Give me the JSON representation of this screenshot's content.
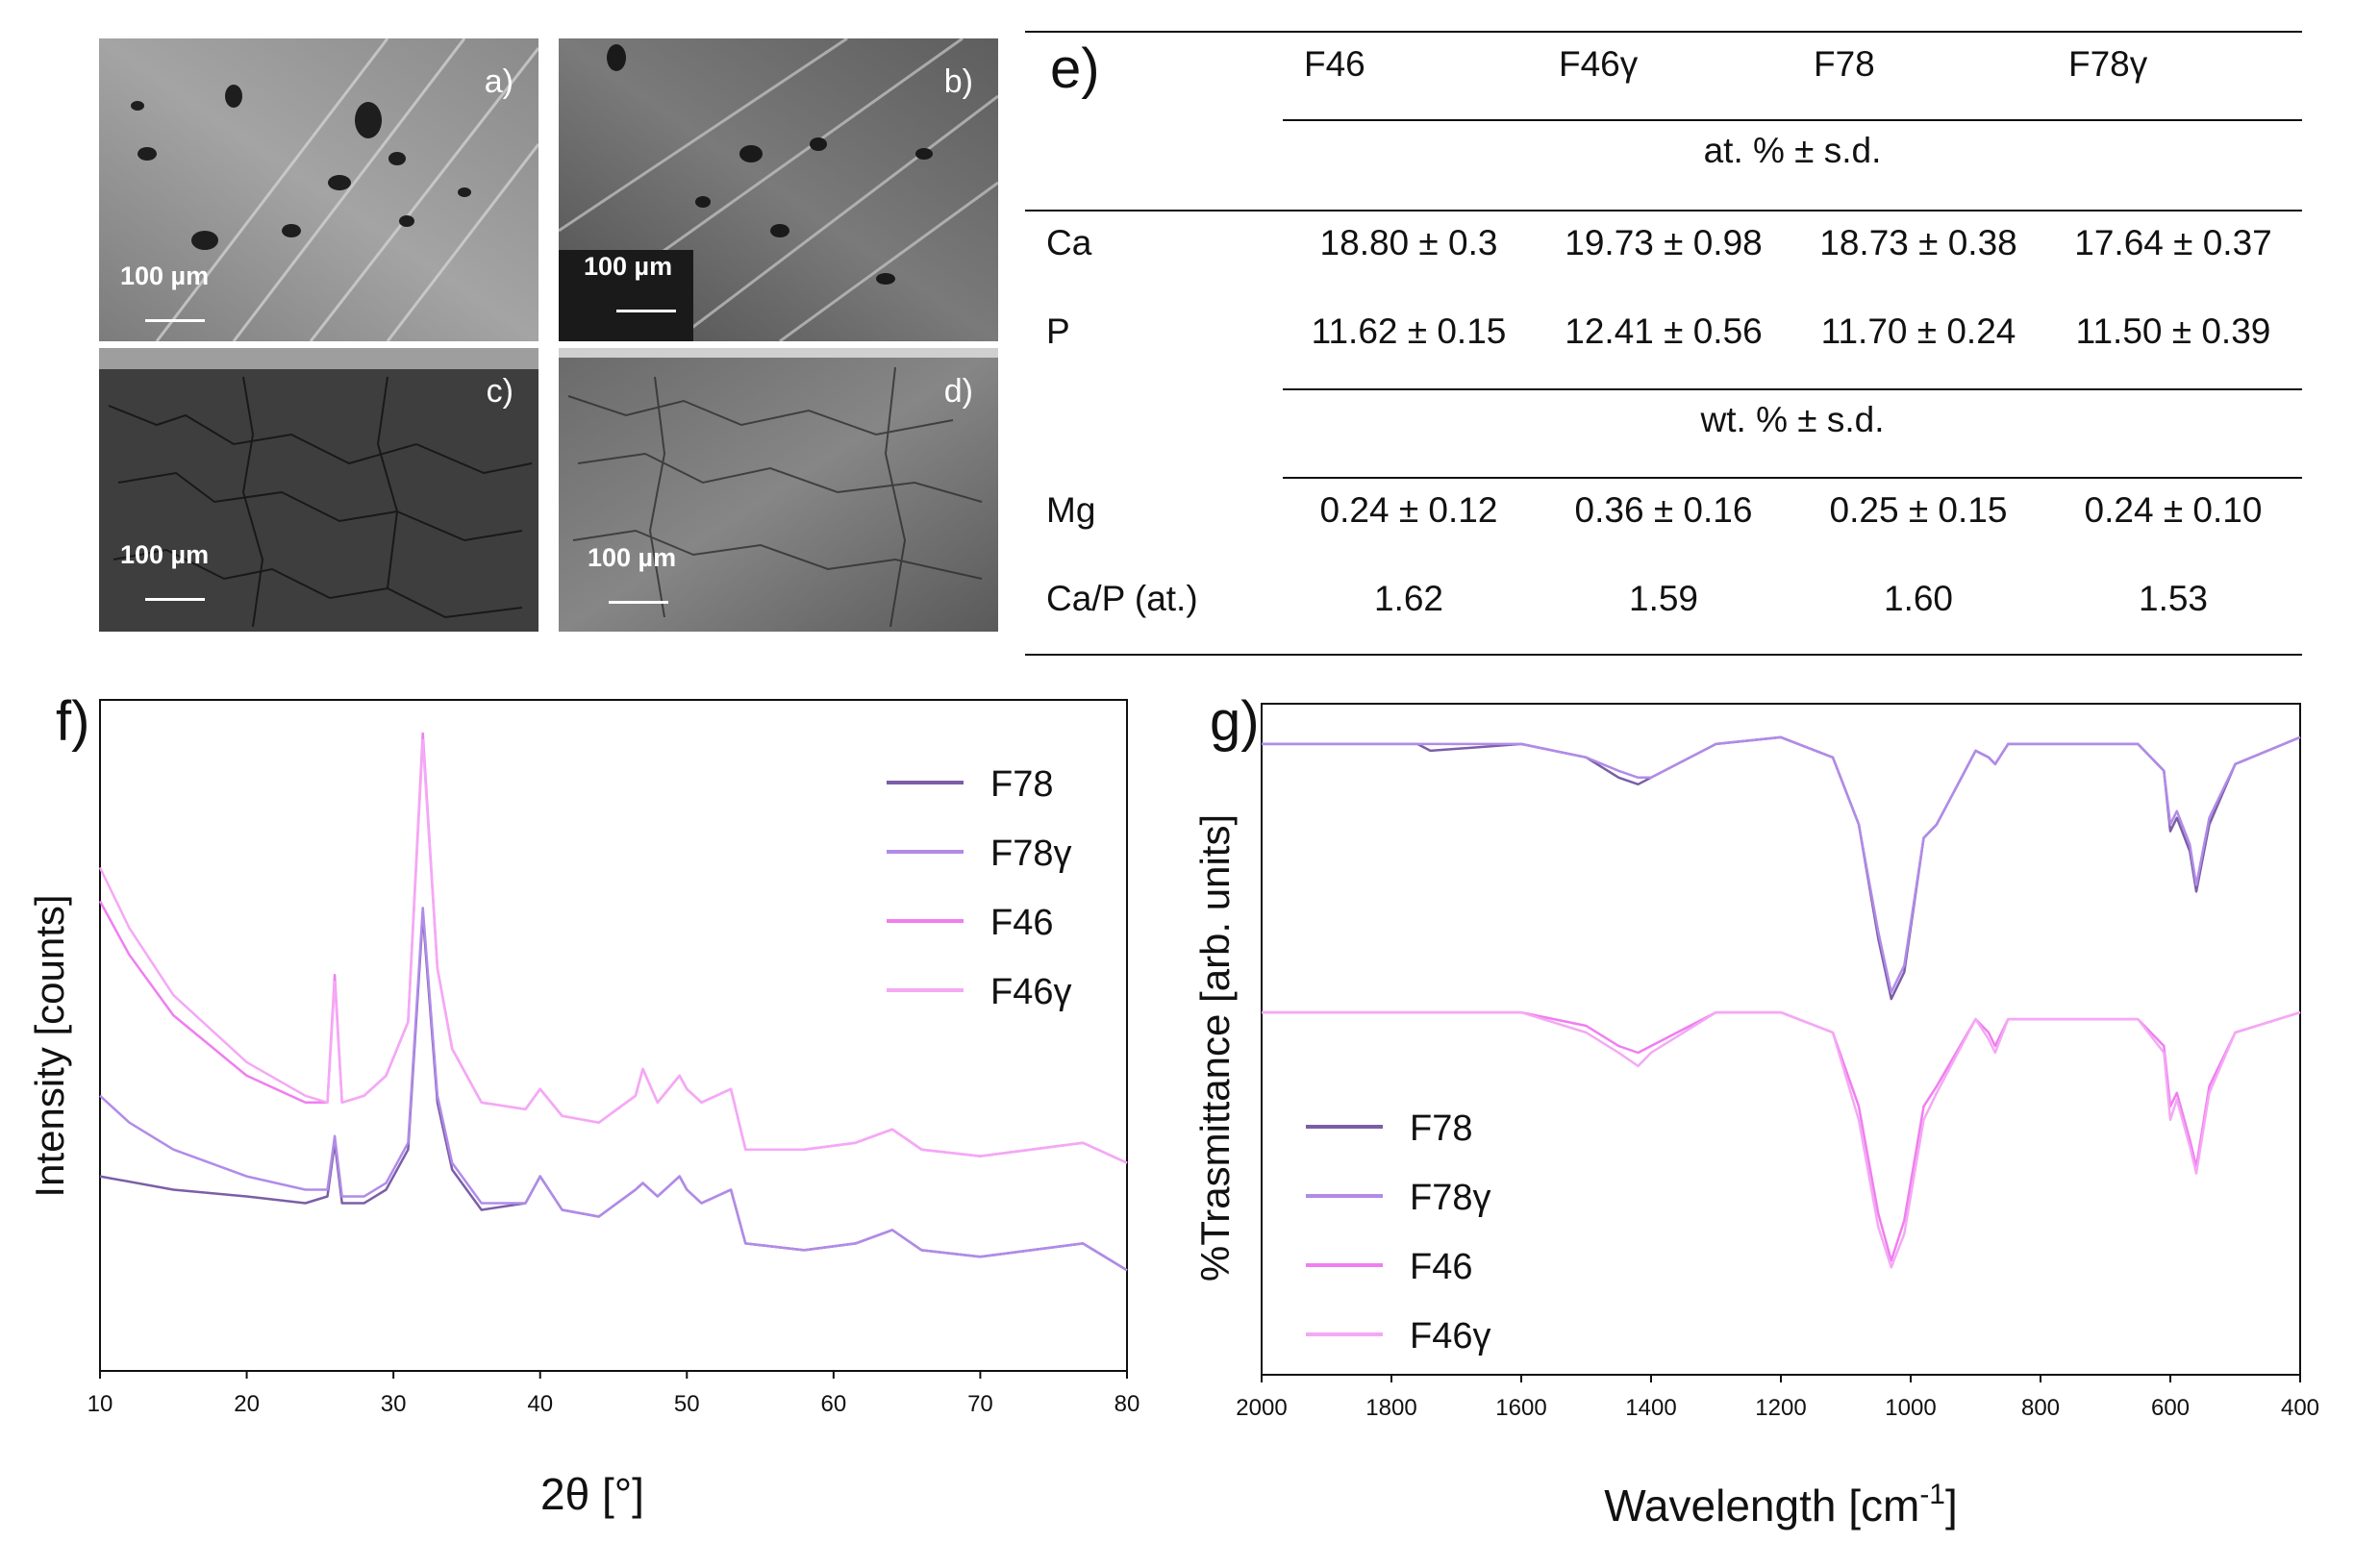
{
  "sem_panels": [
    {
      "letter": "a)",
      "scale": "100 µm"
    },
    {
      "letter": "b)",
      "scale": "100 µm"
    },
    {
      "letter": "c)",
      "scale": "100 µm"
    },
    {
      "letter": "d)",
      "scale": "100 µm"
    }
  ],
  "table": {
    "panel_label": "e)",
    "columns": [
      "F46",
      "F46γ",
      "F78",
      "F78γ"
    ],
    "section1_header": "at. % ± s.d.",
    "section2_header": "wt. % ± s.d.",
    "rows": [
      {
        "label": "Ca",
        "values": [
          "18.80 ± 0.3",
          "19.73 ± 0.98",
          "18.73 ± 0.38",
          "17.64 ± 0.37"
        ]
      },
      {
        "label": "P",
        "values": [
          "11.62 ± 0.15",
          "12.41 ± 0.56",
          "11.70 ± 0.24",
          "11.50 ± 0.39"
        ]
      },
      {
        "label": "Mg",
        "values": [
          "0.24 ± 0.12",
          "0.36 ± 0.16",
          "0.25 ± 0.15",
          "0.24 ± 0.10"
        ]
      },
      {
        "label": "Ca/P (at.)",
        "values": [
          "1.62",
          "1.59",
          "1.60",
          "1.53"
        ]
      }
    ]
  },
  "colors": {
    "F78": "#7b5ea7",
    "F78γ": "#b18be8",
    "F46": "#f07ef0",
    "F46γ": "#f5a8f5"
  },
  "chart_data": [
    {
      "type": "line",
      "panel_label": "f)",
      "title": "",
      "xlabel": "2θ [°]",
      "ylabel": "Intensity [counts]",
      "xlim": [
        10,
        80
      ],
      "xticks": [
        "10",
        "20",
        "30",
        "40",
        "50",
        "60",
        "70",
        "80"
      ],
      "ylim": [
        0,
        1
      ],
      "legend_position": "top-right",
      "series": [
        {
          "name": "F78",
          "x": [
            10,
            15,
            20,
            24,
            25.5,
            26,
            26.5,
            28,
            29.5,
            31,
            32,
            33,
            34,
            36,
            39,
            40,
            41.5,
            44,
            46.5,
            47,
            48,
            49.5,
            50,
            51,
            53,
            54,
            58,
            61.5,
            64,
            66,
            70,
            77,
            80
          ],
          "y": [
            0.29,
            0.27,
            0.26,
            0.25,
            0.26,
            0.34,
            0.25,
            0.25,
            0.27,
            0.33,
            0.68,
            0.4,
            0.3,
            0.24,
            0.25,
            0.29,
            0.24,
            0.23,
            0.27,
            0.28,
            0.26,
            0.29,
            0.27,
            0.25,
            0.27,
            0.19,
            0.18,
            0.19,
            0.21,
            0.18,
            0.17,
            0.19,
            0.15
          ]
        },
        {
          "name": "F78γ",
          "x": [
            10,
            12,
            15,
            20,
            24,
            25.5,
            26,
            26.5,
            28,
            29.5,
            31,
            32,
            33,
            34,
            36,
            39,
            40,
            41.5,
            44,
            46.5,
            47,
            48,
            49.5,
            50,
            51,
            53,
            54,
            58,
            61.5,
            64,
            66,
            70,
            77,
            80
          ],
          "y": [
            0.41,
            0.37,
            0.33,
            0.29,
            0.27,
            0.27,
            0.35,
            0.26,
            0.26,
            0.28,
            0.34,
            0.69,
            0.41,
            0.31,
            0.25,
            0.25,
            0.29,
            0.24,
            0.23,
            0.27,
            0.28,
            0.26,
            0.29,
            0.27,
            0.25,
            0.27,
            0.19,
            0.18,
            0.19,
            0.21,
            0.18,
            0.17,
            0.19,
            0.15
          ]
        },
        {
          "name": "F46",
          "x": [
            10,
            12,
            15,
            20,
            24,
            25.5,
            26,
            26.5,
            28,
            29.5,
            31,
            32,
            33,
            34,
            36,
            39,
            40,
            41.5,
            44,
            46.5,
            47,
            48,
            49.5,
            50,
            51,
            53,
            54,
            58,
            61.5,
            64,
            66,
            70,
            77,
            80
          ],
          "y": [
            0.7,
            0.62,
            0.53,
            0.44,
            0.4,
            0.4,
            0.59,
            0.4,
            0.41,
            0.44,
            0.52,
            0.95,
            0.6,
            0.48,
            0.4,
            0.39,
            0.42,
            0.38,
            0.37,
            0.41,
            0.45,
            0.4,
            0.44,
            0.42,
            0.4,
            0.42,
            0.33,
            0.33,
            0.34,
            0.36,
            0.33,
            0.32,
            0.34,
            0.31
          ]
        },
        {
          "name": "F46γ",
          "x": [
            10,
            12,
            15,
            20,
            24,
            25.5,
            26,
            26.5,
            28,
            29.5,
            31,
            32,
            33,
            34,
            36,
            39,
            40,
            41.5,
            44,
            46.5,
            47,
            48,
            49.5,
            50,
            51,
            53,
            54,
            58,
            61.5,
            64,
            66,
            70,
            77,
            80
          ],
          "y": [
            0.75,
            0.66,
            0.56,
            0.46,
            0.41,
            0.4,
            0.58,
            0.4,
            0.41,
            0.44,
            0.52,
            0.94,
            0.6,
            0.48,
            0.4,
            0.39,
            0.42,
            0.38,
            0.37,
            0.41,
            0.45,
            0.4,
            0.44,
            0.42,
            0.4,
            0.42,
            0.33,
            0.33,
            0.34,
            0.36,
            0.33,
            0.32,
            0.34,
            0.31
          ]
        }
      ]
    },
    {
      "type": "line",
      "panel_label": "g)",
      "title": "",
      "xlabel": "Wavelength [cm",
      "xlabel_sup": "-1",
      "xlabel_end": "]",
      "ylabel": "%Trasmittance [arb. units]",
      "xlim": [
        2000,
        400
      ],
      "xticks": [
        "2000",
        "1800",
        "1600",
        "1400",
        "1200",
        "1000",
        "800",
        "600",
        "400"
      ],
      "ylim": [
        0,
        1
      ],
      "legend_position": "bottom-left",
      "series": [
        {
          "name": "F78",
          "x": [
            2000,
            1800,
            1760,
            1740,
            1600,
            1500,
            1450,
            1420,
            1400,
            1300,
            1200,
            1120,
            1080,
            1050,
            1030,
            1010,
            980,
            960,
            900,
            880,
            870,
            850,
            800,
            650,
            610,
            600,
            590,
            570,
            560,
            540,
            500,
            400
          ],
          "y": [
            0.94,
            0.94,
            0.94,
            0.93,
            0.94,
            0.92,
            0.89,
            0.88,
            0.89,
            0.94,
            0.95,
            0.92,
            0.82,
            0.65,
            0.56,
            0.6,
            0.8,
            0.82,
            0.93,
            0.92,
            0.91,
            0.94,
            0.94,
            0.94,
            0.9,
            0.81,
            0.83,
            0.78,
            0.72,
            0.82,
            0.91,
            0.95
          ]
        },
        {
          "name": "F78γ",
          "x": [
            2000,
            1800,
            1600,
            1500,
            1450,
            1420,
            1400,
            1300,
            1200,
            1120,
            1080,
            1050,
            1030,
            1010,
            980,
            960,
            900,
            880,
            870,
            850,
            800,
            650,
            610,
            600,
            590,
            570,
            560,
            540,
            500,
            400
          ],
          "y": [
            0.94,
            0.94,
            0.94,
            0.92,
            0.9,
            0.89,
            0.89,
            0.94,
            0.95,
            0.92,
            0.82,
            0.66,
            0.57,
            0.61,
            0.8,
            0.82,
            0.93,
            0.92,
            0.91,
            0.94,
            0.94,
            0.94,
            0.9,
            0.82,
            0.84,
            0.79,
            0.73,
            0.83,
            0.91,
            0.95
          ]
        },
        {
          "name": "F46",
          "x": [
            2000,
            1800,
            1600,
            1500,
            1450,
            1420,
            1400,
            1300,
            1200,
            1120,
            1080,
            1050,
            1030,
            1010,
            980,
            960,
            900,
            880,
            870,
            850,
            800,
            650,
            610,
            600,
            590,
            570,
            560,
            540,
            500,
            400
          ],
          "y": [
            0.54,
            0.54,
            0.54,
            0.52,
            0.49,
            0.48,
            0.49,
            0.54,
            0.54,
            0.51,
            0.4,
            0.24,
            0.17,
            0.23,
            0.4,
            0.43,
            0.53,
            0.51,
            0.49,
            0.53,
            0.53,
            0.53,
            0.49,
            0.4,
            0.42,
            0.35,
            0.31,
            0.43,
            0.51,
            0.54
          ]
        },
        {
          "name": "F46γ",
          "x": [
            2000,
            1800,
            1600,
            1500,
            1450,
            1420,
            1400,
            1300,
            1200,
            1120,
            1080,
            1050,
            1030,
            1010,
            980,
            960,
            900,
            880,
            870,
            850,
            800,
            650,
            610,
            600,
            590,
            570,
            560,
            540,
            500,
            400
          ],
          "y": [
            0.54,
            0.54,
            0.54,
            0.51,
            0.48,
            0.46,
            0.48,
            0.54,
            0.54,
            0.51,
            0.38,
            0.22,
            0.16,
            0.21,
            0.38,
            0.42,
            0.53,
            0.5,
            0.48,
            0.53,
            0.53,
            0.53,
            0.48,
            0.38,
            0.41,
            0.34,
            0.3,
            0.42,
            0.51,
            0.54
          ]
        }
      ]
    }
  ]
}
